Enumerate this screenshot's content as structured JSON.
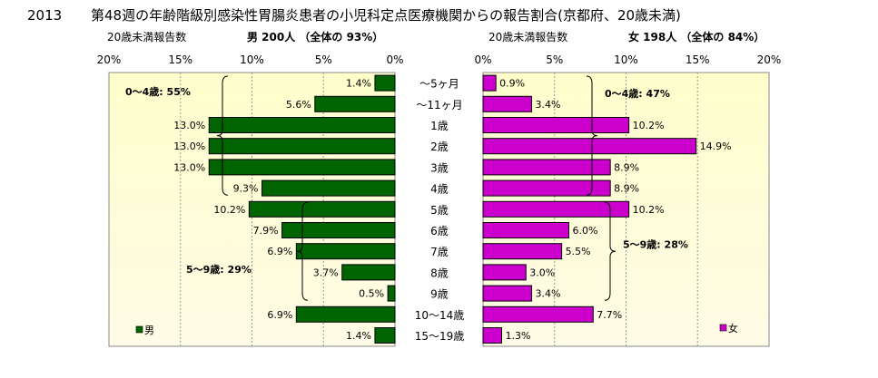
{
  "page": {
    "year": "2013",
    "title": "第48週の年齢階級別感染性胃腸炎患者の小児科定点医療機関からの報告割合(京都府、20歳未満)"
  },
  "chart_data": {
    "type": "bar",
    "orientation": "horizontal",
    "categories": [
      "～5ヶ月",
      "～11ヶ月",
      "1歳",
      "2歳",
      "3歳",
      "4歳",
      "5歳",
      "6歳",
      "7歳",
      "8歳",
      "9歳",
      "10～14歳",
      "15～19歳"
    ],
    "panels": [
      {
        "id": "male",
        "axis_caption": "20歳未満報告数",
        "summary": "男 200人 （全体の 93%）",
        "series_name": "男",
        "color": "#006400",
        "direction": "left",
        "xlim": [
          0,
          20
        ],
        "ticks": [
          0,
          5,
          10,
          15,
          20
        ],
        "values": [
          1.4,
          5.6,
          13.0,
          13.0,
          13.0,
          9.3,
          10.2,
          7.9,
          6.9,
          3.7,
          0.5,
          6.9,
          1.4
        ],
        "groups": [
          {
            "label": "0～4歳: 55%",
            "from": 0,
            "to": 5
          },
          {
            "label": "5～9歳: 29%",
            "from": 6,
            "to": 10
          }
        ]
      },
      {
        "id": "female",
        "axis_caption": "20歳未満報告数",
        "summary": "女 198人 （全体の 84%）",
        "series_name": "女",
        "color": "#cc00cc",
        "direction": "right",
        "xlim": [
          0,
          20
        ],
        "ticks": [
          0,
          5,
          10,
          15,
          20
        ],
        "values": [
          0.9,
          3.4,
          10.2,
          14.9,
          8.9,
          8.9,
          10.2,
          6.0,
          5.5,
          3.0,
          3.4,
          7.7,
          1.3
        ],
        "groups": [
          {
            "label": "0～4歳: 47%",
            "from": 0,
            "to": 5
          },
          {
            "label": "5～9歳: 28%",
            "from": 6,
            "to": 10
          }
        ]
      }
    ],
    "grid": true
  }
}
